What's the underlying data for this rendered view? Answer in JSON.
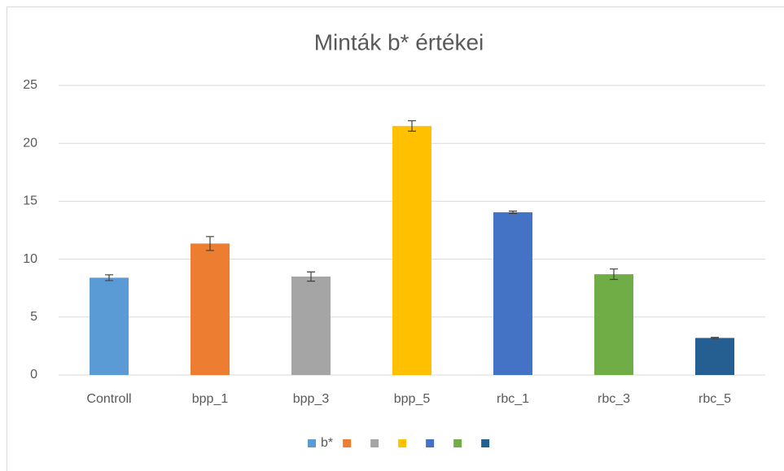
{
  "chart_data": {
    "type": "bar",
    "title": "Minták b* értékei",
    "categories": [
      "Controll",
      "bpp_1",
      "bpp_3",
      "bpp_5",
      "rbc_1",
      "rbc_3",
      "rbc_5"
    ],
    "series": [
      {
        "name": "b*",
        "colors": [
          "#5b9bd5",
          "#ed7d31",
          "#a5a5a5",
          "#ffc000",
          "#4472c4",
          "#70ad47",
          "#255e91"
        ],
        "values": [
          8.4,
          11.35,
          8.5,
          21.5,
          14.05,
          8.7,
          3.2
        ],
        "errors": [
          0.25,
          0.6,
          0.4,
          0.45,
          0.1,
          0.45,
          0.05
        ]
      }
    ],
    "ylim": [
      0,
      25
    ],
    "yticks": [
      0,
      5,
      10,
      15,
      20,
      25
    ],
    "grid": true,
    "legend": "bottom"
  }
}
